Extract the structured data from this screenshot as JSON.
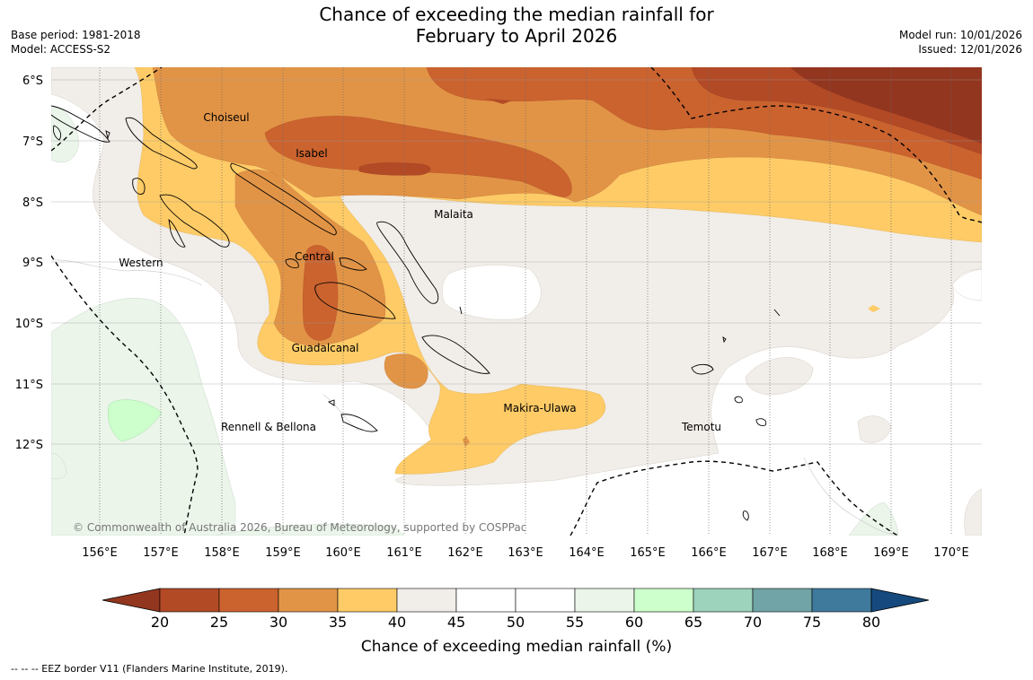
{
  "title_line1": "Chance of exceeding the median rainfall for",
  "title_line2": "February to April 2026",
  "base_period": "Base period: 1981-2018",
  "model": "Model: ACCESS-S2",
  "model_run": "Model run: 10/01/2026",
  "issued": "Issued: 12/01/2026",
  "copyright": "© Commonwealth of Australia 2026, Bureau of Meteorology, supported by COSPPac",
  "eez_note": "--  --  -- EEZ border V11 (Flanders Marine Institute, 2019).",
  "colorbar": {
    "title": "Chance of exceeding median rainfall (%)",
    "ticks": [
      "20",
      "25",
      "30",
      "35",
      "40",
      "45",
      "50",
      "55",
      "60",
      "65",
      "70",
      "75",
      "80"
    ],
    "colors": [
      "#b24a26",
      "#cb632f",
      "#e29446",
      "#fecb66",
      "#f1ede8",
      "#ffffff",
      "#ffffff",
      "#ebf5ea",
      "#ccffcc",
      "#9dd2bd",
      "#71a4a6",
      "#3f7a9d"
    ],
    "under_color": "#93361f",
    "over_color": "#164a7e"
  },
  "axes": {
    "lon_ticks": [
      "156°E",
      "157°E",
      "158°E",
      "159°E",
      "160°E",
      "161°E",
      "162°E",
      "163°E",
      "164°E",
      "165°E",
      "166°E",
      "167°E",
      "168°E",
      "169°E",
      "170°E"
    ],
    "lat_ticks": [
      "6°S",
      "7°S",
      "8°S",
      "9°S",
      "10°S",
      "11°S",
      "12°S"
    ]
  },
  "provinces": {
    "choiseul": "Choiseul",
    "isabel": "Isabel",
    "malaita": "Malaita",
    "western": "Western",
    "central": "Central",
    "guadalcanal": "Guadalcanal",
    "makira": "Makira-Ulawa",
    "rennell": "Rennell & Bellona",
    "temotu": "Temotu"
  }
}
